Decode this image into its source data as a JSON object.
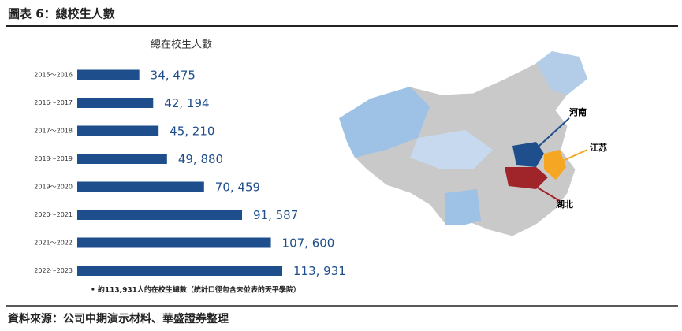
{
  "header": {
    "title": "圖表 6：總校生人數"
  },
  "chart_data": {
    "type": "bar",
    "orientation": "horizontal",
    "title": "總在校生人數",
    "categories": [
      "2015～2016",
      "2016～2017",
      "2017～2018",
      "2018～2019",
      "2019～2020",
      "2020～2021",
      "2021～2022",
      "2022～2023"
    ],
    "values": [
      34475,
      42194,
      45210,
      49880,
      70459,
      91587,
      107600,
      113931
    ],
    "value_labels": [
      "34, 475",
      "42, 194",
      "45, 210",
      "49, 880",
      "70, 459",
      "91, 587",
      "107, 600",
      "113, 931"
    ],
    "color": "#1f4e8c",
    "note": "• 約113,931人的在校生總數（統計口徑包含未並表的天平學院）"
  },
  "map": {
    "labels": [
      "河南",
      "江苏",
      "湖北"
    ]
  },
  "footer": {
    "source": "資料來源：公司中期演示材料、華盛證券整理"
  }
}
